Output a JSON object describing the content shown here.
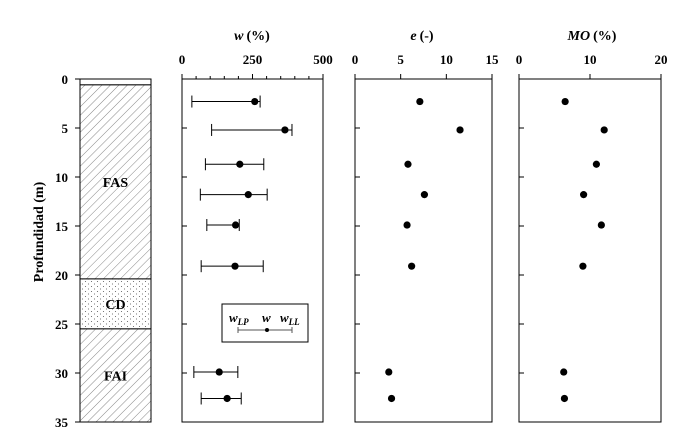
{
  "chart_data": [
    {
      "type": "scatter",
      "panel": "stratigraphy",
      "ylabel": "Profundidad  (m)",
      "yticks": [
        0,
        5,
        10,
        15,
        20,
        25,
        30,
        35
      ],
      "ylim": [
        0,
        35
      ],
      "y_inverted": true,
      "layers": [
        {
          "label": "",
          "top": 0,
          "bottom": 0.6,
          "pattern": "none"
        },
        {
          "label": "FAS",
          "top": 0.6,
          "bottom": 20.4,
          "pattern": "hatch"
        },
        {
          "label": "CD",
          "top": 20.4,
          "bottom": 25.5,
          "pattern": "dots"
        },
        {
          "label": "FAI",
          "top": 25.5,
          "bottom": 35,
          "pattern": "hatch"
        }
      ]
    },
    {
      "type": "scatter",
      "title_var": "w",
      "title_unit": "(%)",
      "xlim": [
        0,
        500
      ],
      "xticks": [
        0,
        250,
        500
      ],
      "minor_xticks": [
        50,
        100,
        150,
        200,
        300,
        350,
        400,
        450
      ],
      "ylim": [
        0,
        35
      ],
      "y_inverted": true,
      "points": [
        {
          "depth": 2.3,
          "w_lp": 35,
          "w": 258,
          "w_ll": 277
        },
        {
          "depth": 5.2,
          "w_lp": 105,
          "w": 365,
          "w_ll": 390
        },
        {
          "depth": 8.7,
          "w_lp": 83,
          "w": 205,
          "w_ll": 290
        },
        {
          "depth": 11.8,
          "w_lp": 65,
          "w": 235,
          "w_ll": 302
        },
        {
          "depth": 14.9,
          "w_lp": 88,
          "w": 190,
          "w_ll": 203
        },
        {
          "depth": 19.1,
          "w_lp": 68,
          "w": 188,
          "w_ll": 288
        },
        {
          "depth": 29.9,
          "w_lp": 42,
          "w": 132,
          "w_ll": 198
        },
        {
          "depth": 32.6,
          "w_lp": 68,
          "w": 160,
          "w_ll": 210
        }
      ],
      "legend": {
        "w_lp": "w",
        "w_lp_sub": "LP",
        "w": "w",
        "w_ll": "w",
        "w_ll_sub": "LL"
      }
    },
    {
      "type": "scatter",
      "title_var": "e",
      "title_unit": "(-)",
      "xlim": [
        0,
        15
      ],
      "xticks": [
        0,
        5,
        10,
        15
      ],
      "ylim": [
        0,
        35
      ],
      "y_inverted": true,
      "points": [
        {
          "depth": 2.3,
          "value": 7.1
        },
        {
          "depth": 5.2,
          "value": 11.5
        },
        {
          "depth": 8.7,
          "value": 5.8
        },
        {
          "depth": 11.8,
          "value": 7.6
        },
        {
          "depth": 14.9,
          "value": 5.7
        },
        {
          "depth": 19.1,
          "value": 6.2
        },
        {
          "depth": 29.9,
          "value": 3.7
        },
        {
          "depth": 32.6,
          "value": 4.0
        }
      ]
    },
    {
      "type": "scatter",
      "title_var": "MO",
      "title_unit": "(%)",
      "xlim": [
        0,
        20
      ],
      "xticks": [
        0,
        10,
        20
      ],
      "ylim": [
        0,
        35
      ],
      "y_inverted": true,
      "points": [
        {
          "depth": 2.3,
          "value": 6.5
        },
        {
          "depth": 5.2,
          "value": 12.0
        },
        {
          "depth": 8.7,
          "value": 10.9
        },
        {
          "depth": 11.8,
          "value": 9.1
        },
        {
          "depth": 14.9,
          "value": 11.6
        },
        {
          "depth": 19.1,
          "value": 9.0
        },
        {
          "depth": 29.9,
          "value": 6.3
        },
        {
          "depth": 32.6,
          "value": 6.4
        }
      ]
    }
  ]
}
